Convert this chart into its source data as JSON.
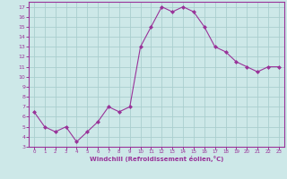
{
  "hours": [
    0,
    1,
    2,
    3,
    4,
    5,
    6,
    7,
    8,
    9,
    10,
    11,
    12,
    13,
    14,
    15,
    16,
    17,
    18,
    19,
    20,
    21,
    22,
    23
  ],
  "values": [
    6.5,
    5.0,
    4.5,
    5.0,
    3.5,
    4.5,
    5.5,
    7.0,
    6.5,
    7.0,
    13.0,
    15.0,
    17.0,
    16.5,
    17.0,
    16.5,
    15.0,
    13.0,
    12.5,
    11.5,
    11.0,
    10.5,
    11.0,
    11.0
  ],
  "line_color": "#993399",
  "marker": "D",
  "marker_size": 2.0,
  "bg_color": "#cde8e8",
  "grid_color": "#aacece",
  "xlabel": "Windchill (Refroidissement éolien,°C)",
  "xlabel_color": "#993399",
  "tick_color": "#993399",
  "spine_color": "#993399",
  "ylim": [
    3,
    17.5
  ],
  "yticks": [
    3,
    4,
    5,
    6,
    7,
    8,
    9,
    10,
    11,
    12,
    13,
    14,
    15,
    16,
    17
  ],
  "xticks": [
    0,
    1,
    2,
    3,
    4,
    5,
    6,
    7,
    8,
    9,
    10,
    11,
    12,
    13,
    14,
    15,
    16,
    17,
    18,
    19,
    20,
    21,
    22,
    23
  ],
  "fig_bg_color": "#cde8e8"
}
